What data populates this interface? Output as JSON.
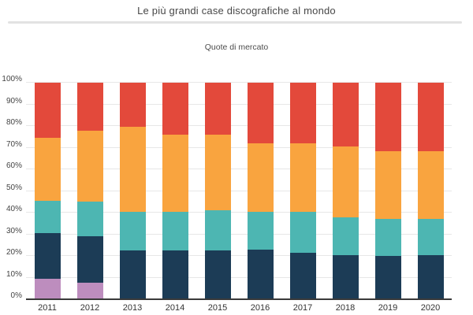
{
  "header": {
    "title": "Le più grandi case discografiche al mondo",
    "subtitle": "Quote di mercato"
  },
  "chart_data": {
    "type": "bar",
    "variant": "percent-stacked-column",
    "title": "Le più grandi case discografiche al mondo",
    "subtitle": "Quote di mercato",
    "categories": [
      "2011",
      "2012",
      "2013",
      "2014",
      "2015",
      "2016",
      "2017",
      "2018",
      "2019",
      "2020"
    ],
    "series": [
      {
        "name": "series-purple",
        "color": "#bd8dbe",
        "values": [
          9.5,
          7.5,
          0,
          0,
          0,
          0,
          0,
          0,
          0,
          0
        ]
      },
      {
        "name": "series-navy",
        "color": "#1c3c56",
        "values": [
          21,
          21.5,
          22.5,
          22.5,
          22.5,
          23,
          21.5,
          20.5,
          20,
          20.5
        ]
      },
      {
        "name": "series-teal",
        "color": "#4db6b2",
        "values": [
          15,
          16,
          18,
          18,
          18.5,
          17.5,
          19,
          17.5,
          17,
          16.5
        ]
      },
      {
        "name": "series-orange",
        "color": "#f9a43f",
        "values": [
          29,
          33,
          39,
          35.5,
          35,
          31.5,
          31.5,
          32.5,
          31.5,
          31.5
        ]
      },
      {
        "name": "series-red",
        "color": "#e3493b",
        "values": [
          25.5,
          22,
          20.5,
          24,
          24,
          28,
          28,
          29.5,
          31.5,
          31.5
        ]
      }
    ],
    "stack_order": "bottom-to-top",
    "ylim": [
      0,
      100
    ],
    "yticks": [
      "0%",
      "10%",
      "20%",
      "30%",
      "40%",
      "50%",
      "60%",
      "70%",
      "80%",
      "90%",
      "100%"
    ],
    "grid": true,
    "legend": "none"
  }
}
